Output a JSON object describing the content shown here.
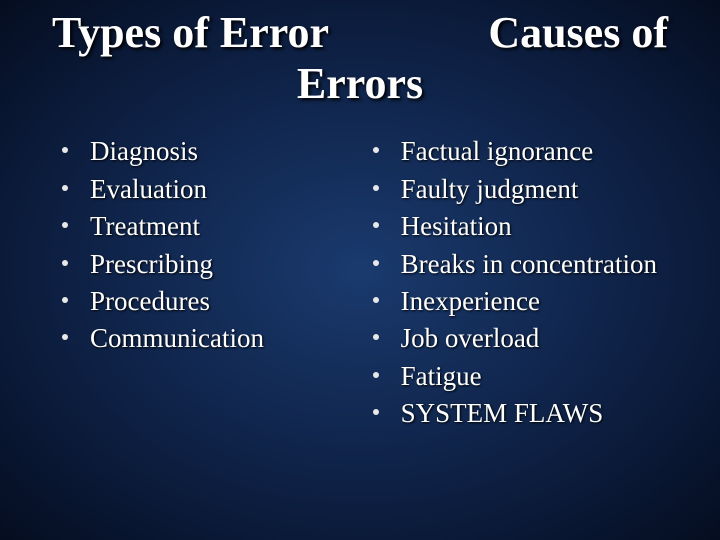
{
  "slide": {
    "title_left": "Types of Error",
    "title_right": "Causes of",
    "title_line2": "Errors",
    "title_fontsize": 44,
    "title_color": "#ffffff",
    "title_shadow": "2px 2px 3px #000000",
    "body_fontsize": 27,
    "body_color": "#ffffff",
    "bullet_color": "#e8e8e8",
    "background": {
      "type": "radial-gradient",
      "center_color": "#1a3a6e",
      "mid_color": "#0d1f42",
      "edge_color": "#050d20"
    },
    "font_family": "Georgia, Times New Roman, serif",
    "columns": {
      "left": {
        "items": [
          "Diagnosis",
          "Evaluation",
          "Treatment",
          "Prescribing",
          "Procedures",
          "Communication"
        ]
      },
      "right": {
        "items": [
          "Factual ignorance",
          "Faulty judgment",
          "Hesitation",
          "Breaks in concentration",
          "Inexperience",
          "Job overload",
          "Fatigue",
          "SYSTEM FLAWS"
        ]
      }
    }
  }
}
